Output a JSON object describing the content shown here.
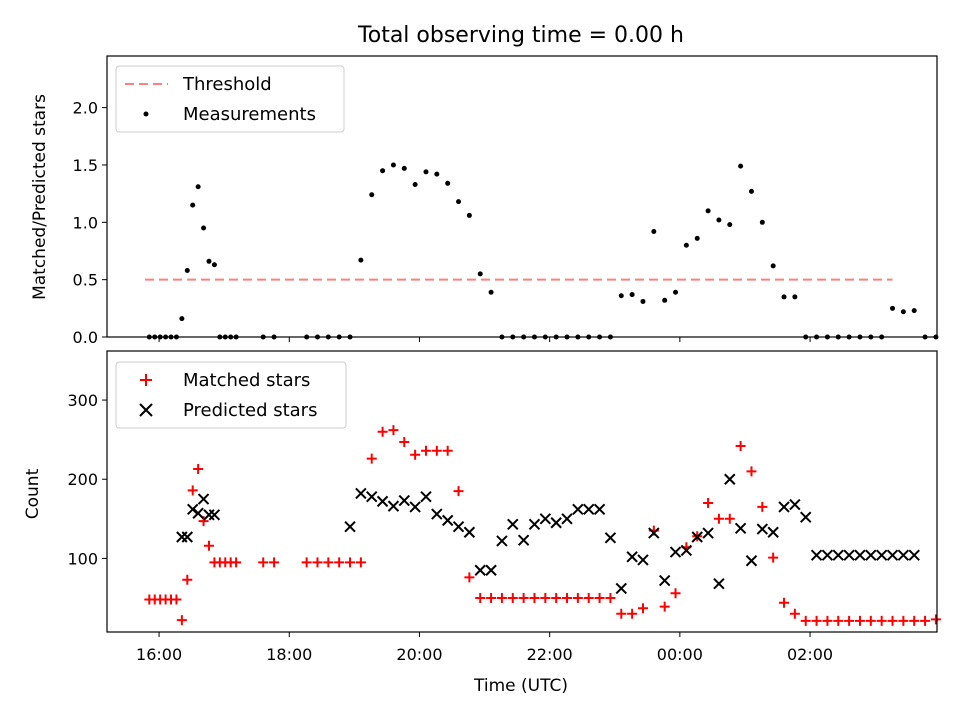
{
  "figure": {
    "title": "Total observing time = 0.00 h",
    "xlabel": "Time (UTC)"
  },
  "chart_data": [
    {
      "type": "scatter",
      "ylabel": "Matched/Predicted stars",
      "xlim": [
        "15:12",
        "03:57"
      ],
      "ylim": [
        0,
        2.45
      ],
      "yticks": [
        0.0,
        0.5,
        1.0,
        1.5,
        2.0
      ],
      "ytick_labels": [
        "0.0",
        "0.5",
        "1.0",
        "1.5",
        "2.0"
      ],
      "xticks": [
        "16:00",
        "18:00",
        "20:00",
        "22:00",
        "00:00",
        "02:00"
      ],
      "legend": {
        "position": "top-left",
        "entries": [
          "Threshold",
          "Measurements"
        ]
      },
      "series": [
        {
          "name": "Threshold",
          "kind": "line",
          "color": "#ff7f7f",
          "style": "dashed",
          "x": [
            "15:47",
            "03:16"
          ],
          "y": [
            0.5,
            0.5
          ]
        },
        {
          "name": "Measurements",
          "kind": "points",
          "color": "#000000",
          "x": [
            "15:51",
            "15:56",
            "16:01",
            "16:06",
            "16:11",
            "16:16",
            "16:21",
            "16:26",
            "16:31",
            "16:36",
            "16:41",
            "16:46",
            "16:51",
            "16:56",
            "17:01",
            "17:06",
            "17:11",
            "17:36",
            "17:46",
            "18:16",
            "18:26",
            "18:36",
            "18:46",
            "18:56",
            "19:06",
            "19:16",
            "19:26",
            "19:36",
            "19:46",
            "19:56",
            "20:06",
            "20:16",
            "20:26",
            "20:36",
            "20:46",
            "20:56",
            "21:06",
            "21:16",
            "21:26",
            "21:36",
            "21:46",
            "21:56",
            "22:06",
            "22:16",
            "22:26",
            "22:36",
            "22:46",
            "22:56",
            "23:06",
            "23:16",
            "23:26",
            "23:36",
            "23:46",
            "23:56",
            "00:06",
            "00:16",
            "00:26",
            "00:36",
            "00:46",
            "00:56",
            "01:06",
            "01:16",
            "01:26",
            "01:36",
            "01:46",
            "01:56",
            "02:06",
            "02:16",
            "02:26",
            "02:36",
            "02:46",
            "02:56",
            "03:06",
            "03:16",
            "03:26",
            "03:36",
            "03:46",
            "03:56"
          ],
          "y": [
            0.0,
            0.0,
            0.0,
            0.0,
            0.0,
            0.0,
            0.16,
            0.58,
            1.15,
            1.31,
            0.95,
            0.66,
            0.63,
            0.0,
            0.0,
            0.0,
            0.0,
            0.0,
            0.0,
            0.0,
            0.0,
            0.0,
            0.0,
            0.0,
            0.67,
            1.24,
            1.45,
            1.5,
            1.47,
            1.33,
            1.44,
            1.42,
            1.34,
            1.18,
            1.06,
            0.55,
            0.39,
            0.0,
            0.0,
            0.0,
            0.0,
            0.0,
            0.0,
            0.0,
            0.0,
            0.0,
            0.0,
            0.0,
            0.36,
            0.37,
            0.31,
            0.92,
            0.32,
            0.39,
            0.8,
            0.86,
            1.1,
            1.02,
            0.98,
            1.49,
            1.27,
            1.0,
            0.62,
            0.35,
            0.35,
            0.0,
            0.0,
            0.0,
            0.0,
            0.0,
            0.0,
            0.0,
            0.0,
            0.25,
            0.22,
            0.23,
            0.0,
            0.0
          ]
        }
      ]
    },
    {
      "type": "scatter",
      "ylabel": "Count",
      "xlim": [
        "15:12",
        "03:57"
      ],
      "ylim": [
        7,
        362
      ],
      "yticks": [
        100,
        200,
        300
      ],
      "ytick_labels": [
        "100",
        "200",
        "300"
      ],
      "xticks": [
        "16:00",
        "18:00",
        "20:00",
        "22:00",
        "00:00",
        "02:00"
      ],
      "xtick_labels": [
        "16:00",
        "18:00",
        "20:00",
        "22:00",
        "00:00",
        "02:00"
      ],
      "legend": {
        "position": "top-left",
        "entries": [
          "Matched stars",
          "Predicted stars"
        ]
      },
      "series": [
        {
          "name": "Matched stars",
          "kind": "plus",
          "color": "#ff0000",
          "x": [
            "15:51",
            "15:56",
            "16:01",
            "16:06",
            "16:11",
            "16:16",
            "16:21",
            "16:26",
            "16:31",
            "16:36",
            "16:41",
            "16:46",
            "16:51",
            "16:56",
            "17:01",
            "17:06",
            "17:11",
            "17:36",
            "17:46",
            "18:16",
            "18:26",
            "18:36",
            "18:46",
            "18:56",
            "19:06",
            "19:16",
            "19:26",
            "19:36",
            "19:46",
            "19:56",
            "20:06",
            "20:16",
            "20:26",
            "20:36",
            "20:46",
            "20:56",
            "21:06",
            "21:16",
            "21:26",
            "21:36",
            "21:46",
            "21:56",
            "22:06",
            "22:16",
            "22:26",
            "22:36",
            "22:46",
            "22:56",
            "23:06",
            "23:16",
            "23:26",
            "23:36",
            "23:46",
            "23:56",
            "00:06",
            "00:16",
            "00:26",
            "00:36",
            "00:46",
            "00:56",
            "01:06",
            "01:16",
            "01:26",
            "01:36",
            "01:46",
            "01:56",
            "02:06",
            "02:16",
            "02:26",
            "02:36",
            "02:46",
            "02:56",
            "03:06",
            "03:16",
            "03:26",
            "03:36",
            "03:46",
            "03:56"
          ],
          "y": [
            48,
            48,
            48,
            48,
            48,
            48,
            22,
            73,
            186,
            213,
            147,
            116,
            95,
            95,
            95,
            95,
            95,
            95,
            95,
            95,
            95,
            95,
            95,
            95,
            95,
            226,
            260,
            262,
            247,
            231,
            236,
            236,
            236,
            185,
            76,
            50,
            50,
            50,
            50,
            50,
            50,
            50,
            50,
            50,
            50,
            50,
            50,
            50,
            30,
            30,
            37,
            135,
            39,
            56,
            114,
            128,
            170,
            150,
            150,
            242,
            210,
            165,
            101,
            44,
            30,
            21,
            21,
            21,
            21,
            21,
            21,
            21,
            21,
            21,
            21,
            21,
            21,
            23
          ]
        },
        {
          "name": "Predicted stars",
          "kind": "cross",
          "color": "#000000",
          "x": [
            "16:21",
            "16:26",
            "16:31",
            "16:36",
            "16:41",
            "16:46",
            "16:51",
            "18:56",
            "19:06",
            "19:16",
            "19:26",
            "19:36",
            "19:46",
            "19:56",
            "20:06",
            "20:16",
            "20:26",
            "20:36",
            "20:46",
            "20:56",
            "21:06",
            "21:16",
            "21:26",
            "21:36",
            "21:46",
            "21:56",
            "22:06",
            "22:16",
            "22:26",
            "22:36",
            "22:46",
            "22:56",
            "23:06",
            "23:16",
            "23:26",
            "23:36",
            "23:46",
            "23:56",
            "00:06",
            "00:16",
            "00:26",
            "00:36",
            "00:46",
            "00:56",
            "01:06",
            "01:16",
            "01:26",
            "01:36",
            "01:46",
            "01:56",
            "02:06",
            "02:16",
            "02:26",
            "02:36",
            "02:46",
            "02:56",
            "03:06",
            "03:16",
            "03:26",
            "03:36"
          ],
          "y": [
            127,
            127,
            162,
            157,
            175,
            155,
            155,
            140,
            182,
            178,
            172,
            166,
            173,
            165,
            178,
            156,
            148,
            140,
            133,
            85,
            85,
            122,
            143,
            123,
            143,
            150,
            145,
            150,
            162,
            162,
            162,
            126,
            62,
            102,
            98,
            132,
            72,
            108,
            110,
            127,
            132,
            68,
            200,
            138,
            97,
            137,
            133,
            165,
            168,
            152,
            104,
            104,
            104,
            104,
            104,
            104,
            104,
            104,
            104,
            104
          ]
        }
      ]
    }
  ]
}
